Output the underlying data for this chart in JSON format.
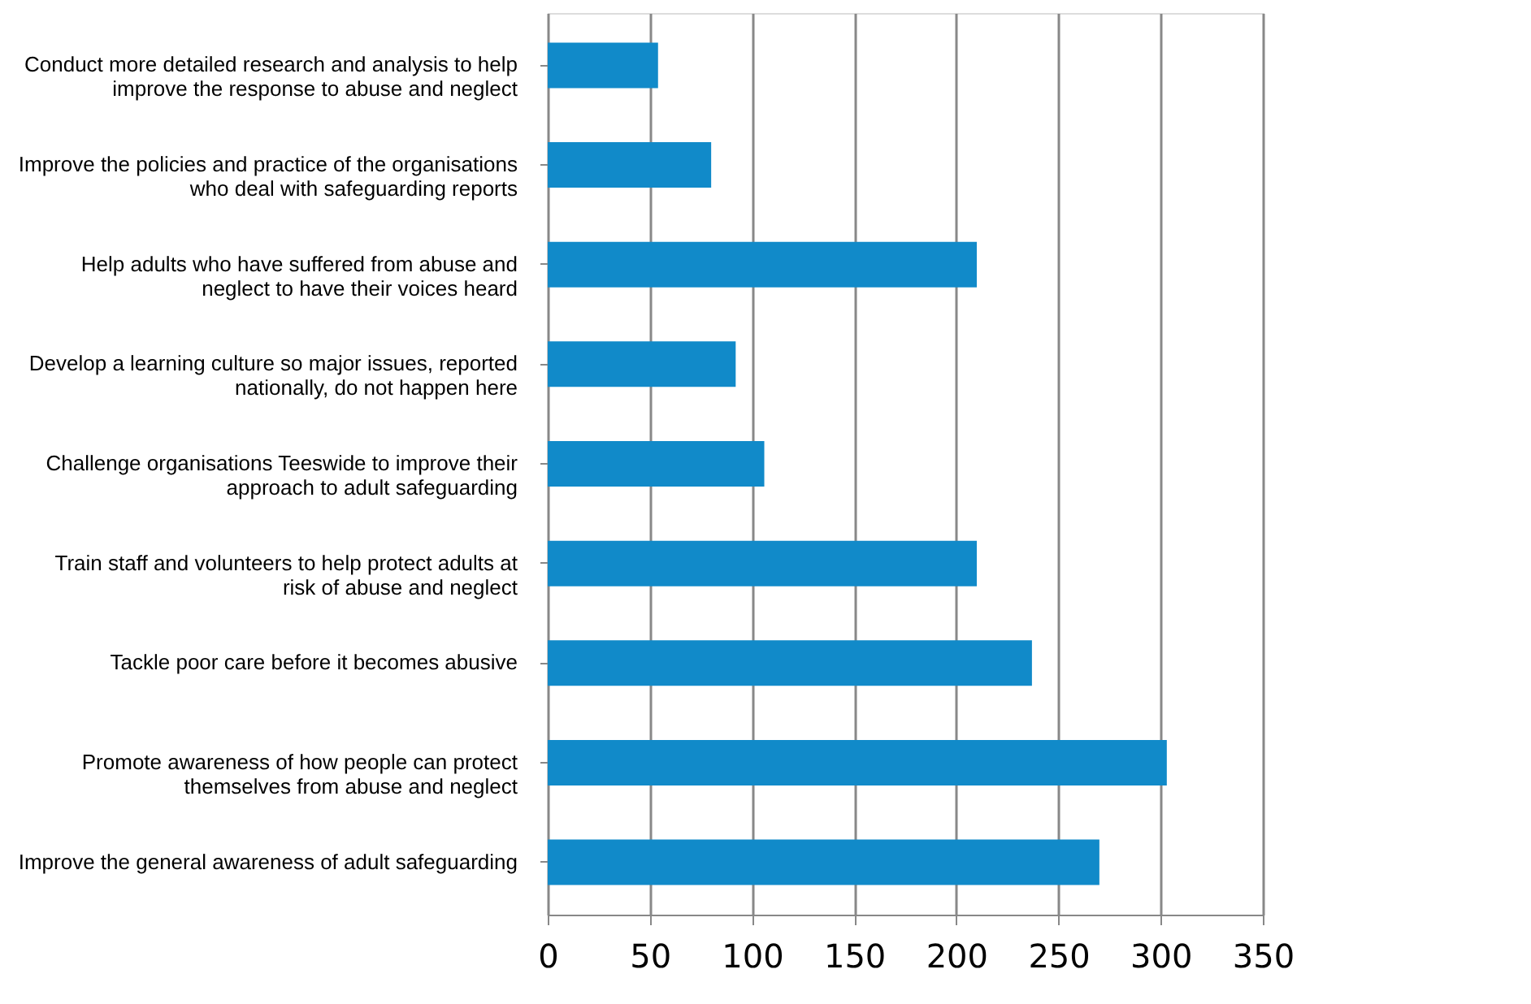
{
  "chart_data": {
    "type": "bar",
    "orientation": "horizontal",
    "categories": [
      "Conduct more detailed research and analysis to help\nimprove the response to abuse and neglect",
      "Improve the policies and practice of the organisations\nwho deal with safeguarding reports",
      "Help adults who have suffered from abuse and\nneglect to have their voices heard",
      "Develop a learning culture so major issues, reported\nnationally, do not happen here",
      "Challenge organisations Teeswide to improve their\napproach to adult safeguarding",
      "Train staff and volunteers to help protect adults at\nrisk of abuse and neglect",
      "Tackle poor care before it becomes abusive",
      "Promote awareness of how people can protect\nthemselves from abuse and neglect",
      "Improve the general awareness of adult safeguarding"
    ],
    "values": [
      54,
      80,
      210,
      92,
      106,
      210,
      237,
      303,
      270
    ],
    "color": "#118ac9",
    "xlim": [
      0,
      350
    ],
    "xticks": [
      0,
      50,
      100,
      150,
      200,
      250,
      300,
      350
    ],
    "grid": "x"
  }
}
